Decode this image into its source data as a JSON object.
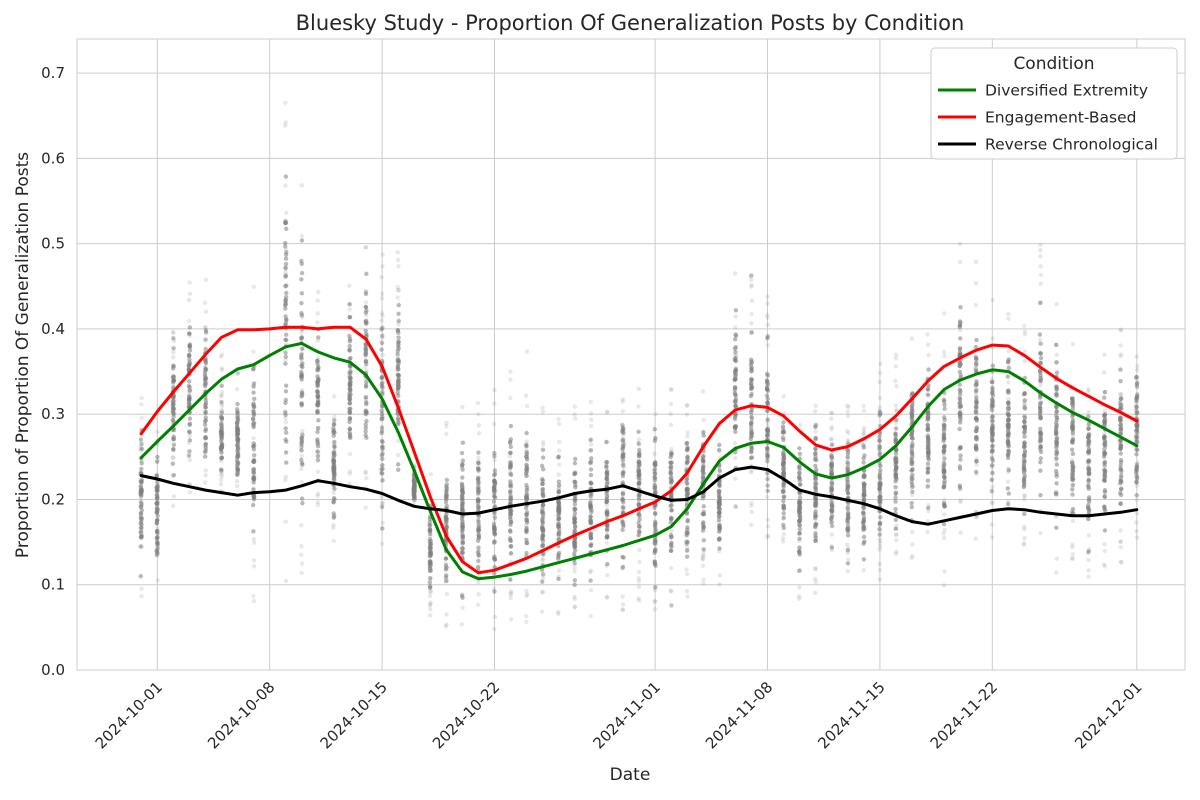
{
  "chart_data": {
    "type": "line",
    "title": "Bluesky Study - Proportion Of Generalization Posts by Condition",
    "xlabel": "Date",
    "ylabel": "Proportion of Proportion Of Generalization Posts",
    "x_axis": {
      "type": "date",
      "range": [
        "2024-09-26",
        "2024-12-04"
      ],
      "ticks": [
        "2024-10-01",
        "2024-10-08",
        "2024-10-15",
        "2024-10-22",
        "2024-11-01",
        "2024-11-08",
        "2024-11-15",
        "2024-11-22",
        "2024-12-01"
      ]
    },
    "y_axis": {
      "range": [
        0,
        0.74
      ],
      "ticks": [
        0.0,
        0.1,
        0.2,
        0.3,
        0.4,
        0.5,
        0.6,
        0.7
      ],
      "tick_labels": [
        "0.0",
        "0.1",
        "0.2",
        "0.3",
        "0.4",
        "0.5",
        "0.6",
        "0.7"
      ]
    },
    "grid": true,
    "legend": {
      "title": "Condition",
      "placement": "top-right",
      "entries": [
        "Diversified Extremity",
        "Engagement-Based",
        "Reverse Chronological"
      ]
    },
    "series": [
      {
        "name": "Diversified Extremity",
        "color": "#008000",
        "points": [
          [
            "2024-09-30",
            0.249
          ],
          [
            "2024-10-01",
            0.268
          ],
          [
            "2024-10-02",
            0.286
          ],
          [
            "2024-10-03",
            0.305
          ],
          [
            "2024-10-04",
            0.324
          ],
          [
            "2024-10-05",
            0.341
          ],
          [
            "2024-10-06",
            0.353
          ],
          [
            "2024-10-07",
            0.358
          ],
          [
            "2024-10-08",
            0.369
          ],
          [
            "2024-10-09",
            0.379
          ],
          [
            "2024-10-10",
            0.383
          ],
          [
            "2024-10-11",
            0.373
          ],
          [
            "2024-10-12",
            0.366
          ],
          [
            "2024-10-13",
            0.361
          ],
          [
            "2024-10-14",
            0.346
          ],
          [
            "2024-10-15",
            0.318
          ],
          [
            "2024-10-16",
            0.279
          ],
          [
            "2024-10-17",
            0.234
          ],
          [
            "2024-10-18",
            0.186
          ],
          [
            "2024-10-19",
            0.141
          ],
          [
            "2024-10-20",
            0.115
          ],
          [
            "2024-10-21",
            0.107
          ],
          [
            "2024-10-22",
            0.109
          ],
          [
            "2024-10-23",
            0.112
          ],
          [
            "2024-10-24",
            0.116
          ],
          [
            "2024-10-25",
            0.121
          ],
          [
            "2024-10-26",
            0.126
          ],
          [
            "2024-10-27",
            0.131
          ],
          [
            "2024-10-28",
            0.136
          ],
          [
            "2024-10-29",
            0.141
          ],
          [
            "2024-10-30",
            0.146
          ],
          [
            "2024-10-31",
            0.152
          ],
          [
            "2024-11-01",
            0.158
          ],
          [
            "2024-11-02",
            0.168
          ],
          [
            "2024-11-03",
            0.189
          ],
          [
            "2024-11-04",
            0.218
          ],
          [
            "2024-11-05",
            0.245
          ],
          [
            "2024-11-06",
            0.26
          ],
          [
            "2024-11-07",
            0.266
          ],
          [
            "2024-11-08",
            0.268
          ],
          [
            "2024-11-09",
            0.261
          ],
          [
            "2024-11-10",
            0.244
          ],
          [
            "2024-11-11",
            0.23
          ],
          [
            "2024-11-12",
            0.225
          ],
          [
            "2024-11-13",
            0.229
          ],
          [
            "2024-11-14",
            0.237
          ],
          [
            "2024-11-15",
            0.247
          ],
          [
            "2024-11-16",
            0.263
          ],
          [
            "2024-11-17",
            0.285
          ],
          [
            "2024-11-18",
            0.309
          ],
          [
            "2024-11-19",
            0.329
          ],
          [
            "2024-11-20",
            0.34
          ],
          [
            "2024-11-21",
            0.347
          ],
          [
            "2024-11-22",
            0.352
          ],
          [
            "2024-11-23",
            0.35
          ],
          [
            "2024-11-24",
            0.339
          ],
          [
            "2024-11-25",
            0.325
          ],
          [
            "2024-11-26",
            0.313
          ],
          [
            "2024-11-27",
            0.302
          ],
          [
            "2024-11-28",
            0.293
          ],
          [
            "2024-11-29",
            0.283
          ],
          [
            "2024-11-30",
            0.273
          ],
          [
            "2024-12-01",
            0.263
          ]
        ]
      },
      {
        "name": "Engagement-Based",
        "color": "#ff0000",
        "points": [
          [
            "2024-09-30",
            0.277
          ],
          [
            "2024-10-01",
            0.303
          ],
          [
            "2024-10-02",
            0.326
          ],
          [
            "2024-10-03",
            0.348
          ],
          [
            "2024-10-04",
            0.37
          ],
          [
            "2024-10-05",
            0.39
          ],
          [
            "2024-10-06",
            0.399
          ],
          [
            "2024-10-07",
            0.399
          ],
          [
            "2024-10-08",
            0.4
          ],
          [
            "2024-10-09",
            0.402
          ],
          [
            "2024-10-10",
            0.402
          ],
          [
            "2024-10-11",
            0.4
          ],
          [
            "2024-10-12",
            0.402
          ],
          [
            "2024-10-13",
            0.402
          ],
          [
            "2024-10-14",
            0.388
          ],
          [
            "2024-10-15",
            0.356
          ],
          [
            "2024-10-16",
            0.308
          ],
          [
            "2024-10-17",
            0.256
          ],
          [
            "2024-10-18",
            0.203
          ],
          [
            "2024-10-19",
            0.157
          ],
          [
            "2024-10-20",
            0.127
          ],
          [
            "2024-10-21",
            0.114
          ],
          [
            "2024-10-22",
            0.117
          ],
          [
            "2024-10-23",
            0.124
          ],
          [
            "2024-10-24",
            0.131
          ],
          [
            "2024-10-25",
            0.14
          ],
          [
            "2024-10-26",
            0.149
          ],
          [
            "2024-10-27",
            0.158
          ],
          [
            "2024-10-28",
            0.166
          ],
          [
            "2024-10-29",
            0.174
          ],
          [
            "2024-10-30",
            0.181
          ],
          [
            "2024-10-31",
            0.189
          ],
          [
            "2024-11-01",
            0.197
          ],
          [
            "2024-11-02",
            0.21
          ],
          [
            "2024-11-03",
            0.231
          ],
          [
            "2024-11-04",
            0.262
          ],
          [
            "2024-11-05",
            0.289
          ],
          [
            "2024-11-06",
            0.305
          ],
          [
            "2024-11-07",
            0.31
          ],
          [
            "2024-11-08",
            0.308
          ],
          [
            "2024-11-09",
            0.298
          ],
          [
            "2024-11-10",
            0.28
          ],
          [
            "2024-11-11",
            0.264
          ],
          [
            "2024-11-12",
            0.258
          ],
          [
            "2024-11-13",
            0.262
          ],
          [
            "2024-11-14",
            0.271
          ],
          [
            "2024-11-15",
            0.282
          ],
          [
            "2024-11-16",
            0.298
          ],
          [
            "2024-11-17",
            0.318
          ],
          [
            "2024-11-18",
            0.339
          ],
          [
            "2024-11-19",
            0.356
          ],
          [
            "2024-11-20",
            0.366
          ],
          [
            "2024-11-21",
            0.375
          ],
          [
            "2024-11-22",
            0.381
          ],
          [
            "2024-11-23",
            0.38
          ],
          [
            "2024-11-24",
            0.369
          ],
          [
            "2024-11-25",
            0.355
          ],
          [
            "2024-11-26",
            0.342
          ],
          [
            "2024-11-27",
            0.331
          ],
          [
            "2024-11-28",
            0.321
          ],
          [
            "2024-11-29",
            0.311
          ],
          [
            "2024-11-30",
            0.302
          ],
          [
            "2024-12-01",
            0.292
          ]
        ]
      },
      {
        "name": "Reverse Chronological",
        "color": "#000000",
        "points": [
          [
            "2024-09-30",
            0.228
          ],
          [
            "2024-10-01",
            0.224
          ],
          [
            "2024-10-02",
            0.219
          ],
          [
            "2024-10-03",
            0.215
          ],
          [
            "2024-10-04",
            0.211
          ],
          [
            "2024-10-05",
            0.208
          ],
          [
            "2024-10-06",
            0.205
          ],
          [
            "2024-10-07",
            0.208
          ],
          [
            "2024-10-08",
            0.209
          ],
          [
            "2024-10-09",
            0.211
          ],
          [
            "2024-10-10",
            0.216
          ],
          [
            "2024-10-11",
            0.222
          ],
          [
            "2024-10-12",
            0.219
          ],
          [
            "2024-10-13",
            0.215
          ],
          [
            "2024-10-14",
            0.212
          ],
          [
            "2024-10-15",
            0.207
          ],
          [
            "2024-10-16",
            0.199
          ],
          [
            "2024-10-17",
            0.192
          ],
          [
            "2024-10-18",
            0.189
          ],
          [
            "2024-10-19",
            0.187
          ],
          [
            "2024-10-20",
            0.183
          ],
          [
            "2024-10-21",
            0.184
          ],
          [
            "2024-10-22",
            0.188
          ],
          [
            "2024-10-23",
            0.192
          ],
          [
            "2024-10-24",
            0.195
          ],
          [
            "2024-10-25",
            0.198
          ],
          [
            "2024-10-26",
            0.202
          ],
          [
            "2024-10-27",
            0.207
          ],
          [
            "2024-10-28",
            0.21
          ],
          [
            "2024-10-29",
            0.212
          ],
          [
            "2024-10-30",
            0.216
          ],
          [
            "2024-10-31",
            0.21
          ],
          [
            "2024-11-01",
            0.204
          ],
          [
            "2024-11-02",
            0.199
          ],
          [
            "2024-11-03",
            0.2
          ],
          [
            "2024-11-04",
            0.209
          ],
          [
            "2024-11-05",
            0.225
          ],
          [
            "2024-11-06",
            0.235
          ],
          [
            "2024-11-07",
            0.238
          ],
          [
            "2024-11-08",
            0.235
          ],
          [
            "2024-11-09",
            0.224
          ],
          [
            "2024-11-10",
            0.211
          ],
          [
            "2024-11-11",
            0.206
          ],
          [
            "2024-11-12",
            0.203
          ],
          [
            "2024-11-13",
            0.199
          ],
          [
            "2024-11-14",
            0.195
          ],
          [
            "2024-11-15",
            0.189
          ],
          [
            "2024-11-16",
            0.181
          ],
          [
            "2024-11-17",
            0.174
          ],
          [
            "2024-11-18",
            0.171
          ],
          [
            "2024-11-19",
            0.175
          ],
          [
            "2024-11-20",
            0.179
          ],
          [
            "2024-11-21",
            0.183
          ],
          [
            "2024-11-22",
            0.187
          ],
          [
            "2024-11-23",
            0.189
          ],
          [
            "2024-11-24",
            0.188
          ],
          [
            "2024-11-25",
            0.185
          ],
          [
            "2024-11-26",
            0.183
          ],
          [
            "2024-11-27",
            0.181
          ],
          [
            "2024-11-28",
            0.181
          ],
          [
            "2024-11-29",
            0.183
          ],
          [
            "2024-11-30",
            0.185
          ],
          [
            "2024-12-01",
            0.188
          ]
        ]
      }
    ],
    "scatter_spread": {
      "description": "gray per-user points, min/max by day",
      "color": "#808080",
      "ranges": [
        [
          "2024-09-30",
          0.08,
          0.32
        ],
        [
          "2024-10-01",
          0.1,
          0.28
        ],
        [
          "2024-10-02",
          0.19,
          0.43
        ],
        [
          "2024-10-03",
          0.19,
          0.46
        ],
        [
          "2024-10-04",
          0.2,
          0.46
        ],
        [
          "2024-10-05",
          0.19,
          0.37
        ],
        [
          "2024-10-06",
          0.19,
          0.35
        ],
        [
          "2024-10-07",
          0.08,
          0.46
        ],
        [
          "2024-10-09",
          0.1,
          0.71
        ],
        [
          "2024-10-10",
          0.1,
          0.6
        ],
        [
          "2024-10-11",
          0.18,
          0.46
        ],
        [
          "2024-10-12",
          0.14,
          0.34
        ],
        [
          "2024-10-13",
          0.2,
          0.47
        ],
        [
          "2024-10-14",
          0.19,
          0.51
        ],
        [
          "2024-10-15",
          0.12,
          0.49
        ],
        [
          "2024-10-16",
          0.2,
          0.49
        ],
        [
          "2024-10-17",
          0.19,
          0.24
        ],
        [
          "2024-10-18",
          0.06,
          0.23
        ],
        [
          "2024-10-19",
          0.05,
          0.29
        ],
        [
          "2024-10-20",
          0.04,
          0.32
        ],
        [
          "2024-10-21",
          0.05,
          0.32
        ],
        [
          "2024-10-22",
          0.04,
          0.33
        ],
        [
          "2024-10-23",
          0.05,
          0.35
        ],
        [
          "2024-10-24",
          0.05,
          0.38
        ],
        [
          "2024-10-25",
          0.05,
          0.31
        ],
        [
          "2024-10-26",
          0.06,
          0.3
        ],
        [
          "2024-10-27",
          0.06,
          0.31
        ],
        [
          "2024-10-28",
          0.06,
          0.32
        ],
        [
          "2024-10-29",
          0.07,
          0.31
        ],
        [
          "2024-10-30",
          0.07,
          0.37
        ],
        [
          "2024-10-31",
          0.08,
          0.34
        ],
        [
          "2024-11-01",
          0.05,
          0.33
        ],
        [
          "2024-11-02",
          0.07,
          0.33
        ],
        [
          "2024-11-03",
          0.08,
          0.33
        ],
        [
          "2024-11-04",
          0.08,
          0.34
        ],
        [
          "2024-11-05",
          0.1,
          0.31
        ],
        [
          "2024-11-06",
          0.18,
          0.48
        ],
        [
          "2024-11-07",
          0.17,
          0.47
        ],
        [
          "2024-11-08",
          0.15,
          0.45
        ],
        [
          "2024-11-09",
          0.12,
          0.35
        ],
        [
          "2024-11-10",
          0.07,
          0.31
        ],
        [
          "2024-11-11",
          0.09,
          0.32
        ],
        [
          "2024-11-12",
          0.12,
          0.31
        ],
        [
          "2024-11-13",
          0.1,
          0.31
        ],
        [
          "2024-11-14",
          0.1,
          0.31
        ],
        [
          "2024-11-15",
          0.1,
          0.36
        ],
        [
          "2024-11-16",
          0.11,
          0.37
        ],
        [
          "2024-11-17",
          0.13,
          0.4
        ],
        [
          "2024-11-18",
          0.15,
          0.4
        ],
        [
          "2024-11-19",
          0.09,
          0.42
        ],
        [
          "2024-11-20",
          0.15,
          0.5
        ],
        [
          "2024-11-21",
          0.14,
          0.49
        ],
        [
          "2024-11-22",
          0.15,
          0.44
        ],
        [
          "2024-11-23",
          0.14,
          0.42
        ],
        [
          "2024-11-24",
          0.14,
          0.41
        ],
        [
          "2024-11-25",
          0.14,
          0.5
        ],
        [
          "2024-11-26",
          0.11,
          0.44
        ],
        [
          "2024-11-27",
          0.13,
          0.39
        ],
        [
          "2024-11-28",
          0.09,
          0.38
        ],
        [
          "2024-11-29",
          0.12,
          0.38
        ],
        [
          "2024-11-30",
          0.12,
          0.4
        ],
        [
          "2024-12-01",
          0.15,
          0.41
        ]
      ]
    }
  }
}
